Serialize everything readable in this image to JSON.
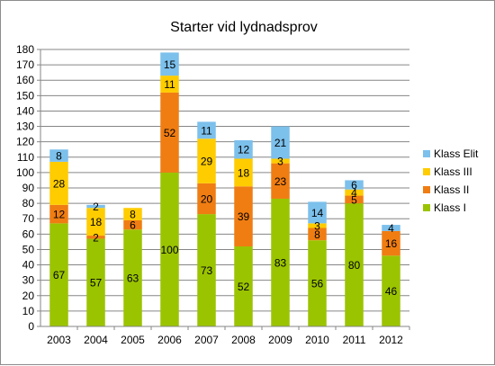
{
  "chart_data": {
    "type": "bar",
    "stacked": true,
    "title": "Starter vid lydnadsprov",
    "categories": [
      "2003",
      "2004",
      "2005",
      "2006",
      "2007",
      "2008",
      "2009",
      "2010",
      "2011",
      "2012"
    ],
    "series": [
      {
        "name": "Klass I",
        "color": "#9bc400",
        "values": [
          67,
          57,
          63,
          100,
          73,
          52,
          83,
          56,
          80,
          46
        ]
      },
      {
        "name": "Klass II",
        "color": "#f07d12",
        "values": [
          12,
          2,
          6,
          52,
          20,
          39,
          23,
          8,
          5,
          16
        ]
      },
      {
        "name": "Klass III",
        "color": "#ffcc00",
        "values": [
          28,
          18,
          8,
          11,
          29,
          18,
          3,
          3,
          4,
          null
        ]
      },
      {
        "name": "Klass Elit",
        "color": "#7cc0ec",
        "values": [
          8,
          2,
          null,
          15,
          11,
          12,
          21,
          14,
          6,
          4
        ]
      }
    ],
    "ylim": [
      0,
      180
    ],
    "ytick_step": 10,
    "grid": true,
    "legend": "right",
    "xlabel": "",
    "ylabel": ""
  }
}
